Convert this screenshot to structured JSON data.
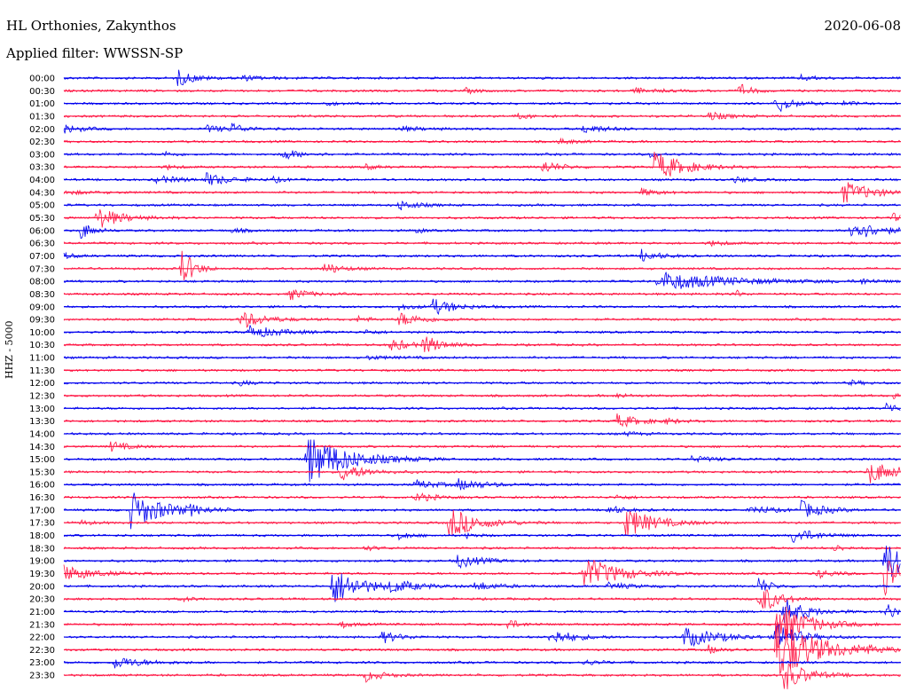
{
  "header": {
    "station": "HL Orthonies, Zakynthos",
    "date": "2020-06-08",
    "filter": "Applied filter: WWSSN-SP"
  },
  "channel_label": "HHZ - 5000",
  "colors": {
    "odd": "#0000ee",
    "even": "#ff1744"
  },
  "rows": [
    {
      "time": "00:00",
      "color": "blue",
      "events": [
        {
          "t": 0.136,
          "a": 9,
          "d": 0.03
        },
        {
          "t": 0.21,
          "a": 3,
          "d": 0.04
        },
        {
          "t": 0.88,
          "a": 3,
          "d": 0.03
        }
      ]
    },
    {
      "time": "00:30",
      "color": "red",
      "events": [
        {
          "t": 0.48,
          "a": 3,
          "d": 0.02
        },
        {
          "t": 0.68,
          "a": 3,
          "d": 0.04
        },
        {
          "t": 0.807,
          "a": 8,
          "d": 0.02
        }
      ]
    },
    {
      "time": "01:00",
      "color": "blue",
      "events": [
        {
          "t": 0.31,
          "a": 2,
          "d": 0.03
        },
        {
          "t": 0.85,
          "a": 13,
          "d": 0.025
        },
        {
          "t": 0.93,
          "a": 3,
          "d": 0.02
        }
      ]
    },
    {
      "time": "01:30",
      "color": "red",
      "events": [
        {
          "t": 0.54,
          "a": 3,
          "d": 0.03
        },
        {
          "t": 0.77,
          "a": 5,
          "d": 0.03
        }
      ]
    },
    {
      "time": "02:00",
      "color": "blue",
      "events": [
        {
          "t": 0.0,
          "a": 5,
          "d": 0.03
        },
        {
          "t": 0.17,
          "a": 4,
          "d": 0.04
        },
        {
          "t": 0.2,
          "a": 6,
          "d": 0.02
        },
        {
          "t": 0.4,
          "a": 3,
          "d": 0.04
        },
        {
          "t": 0.62,
          "a": 5,
          "d": 0.04
        }
      ]
    },
    {
      "time": "02:30",
      "color": "red",
      "events": [
        {
          "t": 0.59,
          "a": 3,
          "d": 0.03
        }
      ]
    },
    {
      "time": "03:00",
      "color": "blue",
      "events": [
        {
          "t": 0.12,
          "a": 3,
          "d": 0.02
        },
        {
          "t": 0.26,
          "a": 7,
          "d": 0.03
        },
        {
          "t": 0.7,
          "a": 3,
          "d": 0.02
        }
      ]
    },
    {
      "time": "03:30",
      "color": "red",
      "events": [
        {
          "t": 0.12,
          "a": 3,
          "d": 0.02
        },
        {
          "t": 0.36,
          "a": 3,
          "d": 0.02
        },
        {
          "t": 0.57,
          "a": 8,
          "d": 0.03
        },
        {
          "t": 0.705,
          "a": 18,
          "d": 0.05
        }
      ]
    },
    {
      "time": "04:00",
      "color": "blue",
      "events": [
        {
          "t": 0.11,
          "a": 4,
          "d": 0.05
        },
        {
          "t": 0.17,
          "a": 7,
          "d": 0.04
        },
        {
          "t": 0.25,
          "a": 3,
          "d": 0.02
        },
        {
          "t": 0.8,
          "a": 3,
          "d": 0.03
        }
      ]
    },
    {
      "time": "04:30",
      "color": "red",
      "events": [
        {
          "t": 0.0,
          "a": 2,
          "d": 0.05
        },
        {
          "t": 0.69,
          "a": 4,
          "d": 0.03
        },
        {
          "t": 0.93,
          "a": 13,
          "d": 0.05
        }
      ]
    },
    {
      "time": "05:00",
      "color": "blue",
      "events": [
        {
          "t": 0.4,
          "a": 6,
          "d": 0.03
        }
      ]
    },
    {
      "time": "05:30",
      "color": "red",
      "events": [
        {
          "t": 0.04,
          "a": 13,
          "d": 0.04
        },
        {
          "t": 0.99,
          "a": 5,
          "d": 0.02
        }
      ]
    },
    {
      "time": "06:00",
      "color": "blue",
      "events": [
        {
          "t": 0.02,
          "a": 11,
          "d": 0.02
        },
        {
          "t": 0.2,
          "a": 3,
          "d": 0.02
        },
        {
          "t": 0.42,
          "a": 3,
          "d": 0.02
        },
        {
          "t": 0.94,
          "a": 12,
          "d": 0.05
        }
      ]
    },
    {
      "time": "06:30",
      "color": "red",
      "events": [
        {
          "t": 0.77,
          "a": 3,
          "d": 0.03
        }
      ]
    },
    {
      "time": "07:00",
      "color": "blue",
      "events": [
        {
          "t": 0.0,
          "a": 3,
          "d": 0.02
        },
        {
          "t": 0.69,
          "a": 7,
          "d": 0.03
        }
      ]
    },
    {
      "time": "07:30",
      "color": "red",
      "events": [
        {
          "t": 0.14,
          "a": 26,
          "d": 0.02
        },
        {
          "t": 0.31,
          "a": 7,
          "d": 0.03
        }
      ]
    },
    {
      "time": "08:00",
      "color": "blue",
      "events": [
        {
          "t": 0.71,
          "a": 11,
          "d": 0.12
        },
        {
          "t": 0.95,
          "a": 4,
          "d": 0.02
        }
      ]
    },
    {
      "time": "08:30",
      "color": "red",
      "events": [
        {
          "t": 0.27,
          "a": 7,
          "d": 0.03
        },
        {
          "t": 0.8,
          "a": 7,
          "d": 0.01
        }
      ]
    },
    {
      "time": "09:00",
      "color": "blue",
      "events": [
        {
          "t": 0.4,
          "a": 3,
          "d": 0.03
        },
        {
          "t": 0.44,
          "a": 9,
          "d": 0.04
        }
      ]
    },
    {
      "time": "09:30",
      "color": "red",
      "events": [
        {
          "t": 0.21,
          "a": 11,
          "d": 0.04
        },
        {
          "t": 0.35,
          "a": 4,
          "d": 0.02
        },
        {
          "t": 0.4,
          "a": 8,
          "d": 0.04
        }
      ]
    },
    {
      "time": "10:00",
      "color": "blue",
      "events": [
        {
          "t": 0.22,
          "a": 8,
          "d": 0.05
        },
        {
          "t": 0.36,
          "a": 3,
          "d": 0.02
        }
      ]
    },
    {
      "time": "10:30",
      "color": "red",
      "events": [
        {
          "t": 0.39,
          "a": 8,
          "d": 0.03
        },
        {
          "t": 0.43,
          "a": 11,
          "d": 0.03
        }
      ]
    },
    {
      "time": "11:00",
      "color": "blue",
      "events": [
        {
          "t": 0.36,
          "a": 2,
          "d": 0.05
        }
      ]
    },
    {
      "time": "11:30",
      "color": "red",
      "events": []
    },
    {
      "time": "12:00",
      "color": "blue",
      "events": [
        {
          "t": 0.21,
          "a": 3,
          "d": 0.02
        },
        {
          "t": 0.94,
          "a": 3,
          "d": 0.02
        }
      ]
    },
    {
      "time": "12:30",
      "color": "red",
      "events": [
        {
          "t": 0.66,
          "a": 3,
          "d": 0.02
        },
        {
          "t": 0.99,
          "a": 4,
          "d": 0.01
        }
      ]
    },
    {
      "time": "13:00",
      "color": "blue",
      "events": [
        {
          "t": 0.982,
          "a": 7,
          "d": 0.02
        }
      ]
    },
    {
      "time": "13:30",
      "color": "red",
      "events": [
        {
          "t": 0.66,
          "a": 8,
          "d": 0.04
        },
        {
          "t": 0.72,
          "a": 3,
          "d": 0.02
        }
      ]
    },
    {
      "time": "14:00",
      "color": "blue",
      "events": [
        {
          "t": 0.67,
          "a": 3,
          "d": 0.02
        }
      ]
    },
    {
      "time": "14:30",
      "color": "red",
      "events": [
        {
          "t": 0.055,
          "a": 6,
          "d": 0.03
        }
      ]
    },
    {
      "time": "15:00",
      "color": "blue",
      "events": [
        {
          "t": 0.29,
          "a": 30,
          "d": 0.07
        },
        {
          "t": 0.75,
          "a": 3,
          "d": 0.05
        }
      ]
    },
    {
      "time": "15:30",
      "color": "red",
      "events": [
        {
          "t": 0.33,
          "a": 11,
          "d": 0.04
        },
        {
          "t": 0.96,
          "a": 14,
          "d": 0.05
        }
      ]
    },
    {
      "time": "16:00",
      "color": "blue",
      "events": [
        {
          "t": 0.42,
          "a": 5,
          "d": 0.04
        },
        {
          "t": 0.47,
          "a": 6,
          "d": 0.05
        }
      ]
    },
    {
      "time": "16:30",
      "color": "red",
      "events": [
        {
          "t": 0.42,
          "a": 6,
          "d": 0.03
        },
        {
          "t": 0.66,
          "a": 3,
          "d": 0.02
        }
      ]
    },
    {
      "time": "17:00",
      "color": "blue",
      "events": [
        {
          "t": 0.08,
          "a": 21,
          "d": 0.06
        },
        {
          "t": 0.15,
          "a": 4,
          "d": 0.02
        },
        {
          "t": 0.65,
          "a": 5,
          "d": 0.03
        },
        {
          "t": 0.82,
          "a": 5,
          "d": 0.04
        },
        {
          "t": 0.88,
          "a": 10,
          "d": 0.04
        }
      ]
    },
    {
      "time": "17:30",
      "color": "red",
      "events": [
        {
          "t": 0.02,
          "a": 3,
          "d": 0.02
        },
        {
          "t": 0.46,
          "a": 18,
          "d": 0.05
        },
        {
          "t": 0.67,
          "a": 18,
          "d": 0.05
        }
      ]
    },
    {
      "time": "18:00",
      "color": "blue",
      "events": [
        {
          "t": 0.4,
          "a": 5,
          "d": 0.02
        },
        {
          "t": 0.48,
          "a": 3,
          "d": 0.02
        },
        {
          "t": 0.87,
          "a": 9,
          "d": 0.04
        }
      ]
    },
    {
      "time": "18:30",
      "color": "red",
      "events": [
        {
          "t": 0.36,
          "a": 3,
          "d": 0.02
        },
        {
          "t": 0.92,
          "a": 4,
          "d": 0.02
        }
      ]
    },
    {
      "time": "19:00",
      "color": "blue",
      "events": [
        {
          "t": 0.47,
          "a": 8,
          "d": 0.04
        },
        {
          "t": 0.98,
          "a": 32,
          "d": 0.03
        }
      ]
    },
    {
      "time": "19:30",
      "color": "red",
      "events": [
        {
          "t": 0.0,
          "a": 9,
          "d": 0.05
        },
        {
          "t": 0.62,
          "a": 20,
          "d": 0.06
        },
        {
          "t": 0.9,
          "a": 5,
          "d": 0.03
        },
        {
          "t": 0.98,
          "a": 30,
          "d": 0.02
        }
      ]
    },
    {
      "time": "20:00",
      "color": "blue",
      "events": [
        {
          "t": 0.32,
          "a": 22,
          "d": 0.05
        },
        {
          "t": 0.39,
          "a": 6,
          "d": 0.05
        },
        {
          "t": 0.49,
          "a": 5,
          "d": 0.04
        },
        {
          "t": 0.65,
          "a": 4,
          "d": 0.04
        },
        {
          "t": 0.83,
          "a": 10,
          "d": 0.02
        }
      ]
    },
    {
      "time": "20:30",
      "color": "red",
      "events": [
        {
          "t": 0.14,
          "a": 3,
          "d": 0.02
        },
        {
          "t": 0.83,
          "a": 20,
          "d": 0.03
        }
      ]
    },
    {
      "time": "21:00",
      "color": "blue",
      "events": [
        {
          "t": 0.86,
          "a": 15,
          "d": 0.04
        },
        {
          "t": 0.98,
          "a": 12,
          "d": 0.02
        }
      ]
    },
    {
      "time": "21:30",
      "color": "red",
      "events": [
        {
          "t": 0.33,
          "a": 4,
          "d": 0.02
        },
        {
          "t": 0.53,
          "a": 6,
          "d": 0.02
        },
        {
          "t": 0.85,
          "a": 30,
          "d": 0.05
        }
      ]
    },
    {
      "time": "22:00",
      "color": "blue",
      "events": [
        {
          "t": 0.38,
          "a": 7,
          "d": 0.03
        },
        {
          "t": 0.58,
          "a": 10,
          "d": 0.04
        },
        {
          "t": 0.74,
          "a": 12,
          "d": 0.06
        },
        {
          "t": 0.85,
          "a": 16,
          "d": 0.04
        }
      ]
    },
    {
      "time": "22:30",
      "color": "red",
      "events": [
        {
          "t": 0.77,
          "a": 5,
          "d": 0.02
        },
        {
          "t": 0.85,
          "a": 38,
          "d": 0.07
        },
        {
          "t": 0.95,
          "a": 4,
          "d": 0.03
        }
      ]
    },
    {
      "time": "23:00",
      "color": "blue",
      "events": [
        {
          "t": 0.06,
          "a": 7,
          "d": 0.05
        },
        {
          "t": 0.62,
          "a": 3,
          "d": 0.03
        }
      ]
    },
    {
      "time": "23:30",
      "color": "red",
      "events": [
        {
          "t": 0.36,
          "a": 7,
          "d": 0.03
        },
        {
          "t": 0.86,
          "a": 18,
          "d": 0.04
        }
      ]
    }
  ]
}
